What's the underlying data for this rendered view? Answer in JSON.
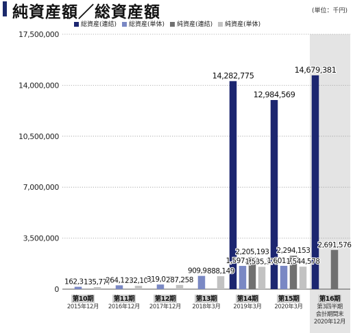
{
  "header": {
    "title": "純資産額／総資産額",
    "unit": "(単位：千円)"
  },
  "colors": {
    "total_assets_consolidated": "#1c2670",
    "total_assets_standalone": "#7a88c4",
    "net_assets_consolidated": "#707070",
    "net_assets_standalone": "#c2c2c2",
    "highlight_band": "#e4e4e4"
  },
  "chart_data": {
    "type": "bar",
    "title": "純資産額／総資産額",
    "ylim": [
      0,
      17500000
    ],
    "yticks": [
      0,
      3500000,
      7000000,
      10500000,
      14000000,
      17500000
    ],
    "ytick_labels": [
      "0",
      "3,500,000",
      "7,000,000",
      "10,500,000",
      "14,000,000",
      "17,500,000"
    ],
    "grid": "horizontal-dotted",
    "legend_position": "top",
    "categories": [
      [
        "第10期",
        "2015年12月"
      ],
      [
        "第11期",
        "2016年12月"
      ],
      [
        "第12期",
        "2017年12月"
      ],
      [
        "第13期",
        "2018年3月"
      ],
      [
        "第14期",
        "2019年3月"
      ],
      [
        "第15期",
        "2020年3月"
      ],
      [
        "第16期",
        "第3四半期",
        "会計期間末",
        "2020年12月"
      ]
    ],
    "highlight_category_index": 6,
    "series": [
      {
        "name": "総資産(連結)",
        "color_key": "total_assets_consolidated",
        "values": [
          null,
          null,
          null,
          null,
          14282775,
          12984569,
          14679381
        ]
      },
      {
        "name": "総資産(単体)",
        "color_key": "total_assets_standalone",
        "values": [
          162315,
          264117,
          319072,
          909992,
          1597980,
          1601761,
          null
        ]
      },
      {
        "name": "純資産(連結)",
        "color_key": "net_assets_consolidated",
        "values": [
          null,
          null,
          null,
          null,
          2205193,
          2294153,
          2691576
        ]
      },
      {
        "name": "純資産(単体)",
        "color_key": "net_assets_standalone",
        "values": [
          135777,
          232104,
          287258,
          888149,
          1535379,
          1544578,
          null
        ]
      }
    ],
    "data_labels": [
      {
        "text": "162,315",
        "series": 1,
        "category": 0,
        "anchor": "above"
      },
      {
        "text": "135,777",
        "series": 3,
        "category": 0,
        "anchor": "above"
      },
      {
        "text": "264,117",
        "series": 1,
        "category": 1,
        "anchor": "above"
      },
      {
        "text": "232,104",
        "series": 3,
        "category": 1,
        "anchor": "above"
      },
      {
        "text": "319,072",
        "series": 1,
        "category": 2,
        "anchor": "above"
      },
      {
        "text": "287,258",
        "series": 3,
        "category": 2,
        "anchor": "above"
      },
      {
        "text": "909,992",
        "series": 1,
        "category": 3,
        "anchor": "above"
      },
      {
        "text": "888,149",
        "series": 3,
        "category": 3,
        "anchor": "above"
      },
      {
        "text": "14,282,775",
        "series": 0,
        "category": 4,
        "anchor": "above"
      },
      {
        "text": "2,205,193",
        "series": 2,
        "category": 4,
        "anchor": "above"
      },
      {
        "text": "1,597,980",
        "series": 1,
        "category": 4,
        "anchor": "above"
      },
      {
        "text": "1,535,379",
        "series": 3,
        "category": 4,
        "anchor": "above"
      },
      {
        "text": "12,984,569",
        "series": 0,
        "category": 5,
        "anchor": "above"
      },
      {
        "text": "2,294,153",
        "series": 2,
        "category": 5,
        "anchor": "above"
      },
      {
        "text": "1,601,761",
        "series": 1,
        "category": 5,
        "anchor": "above"
      },
      {
        "text": "1,544,578",
        "series": 3,
        "category": 5,
        "anchor": "above"
      },
      {
        "text": "14,679,381",
        "series": 0,
        "category": 6,
        "anchor": "above"
      },
      {
        "text": "2,691,576",
        "series": 2,
        "category": 6,
        "anchor": "above"
      }
    ]
  }
}
